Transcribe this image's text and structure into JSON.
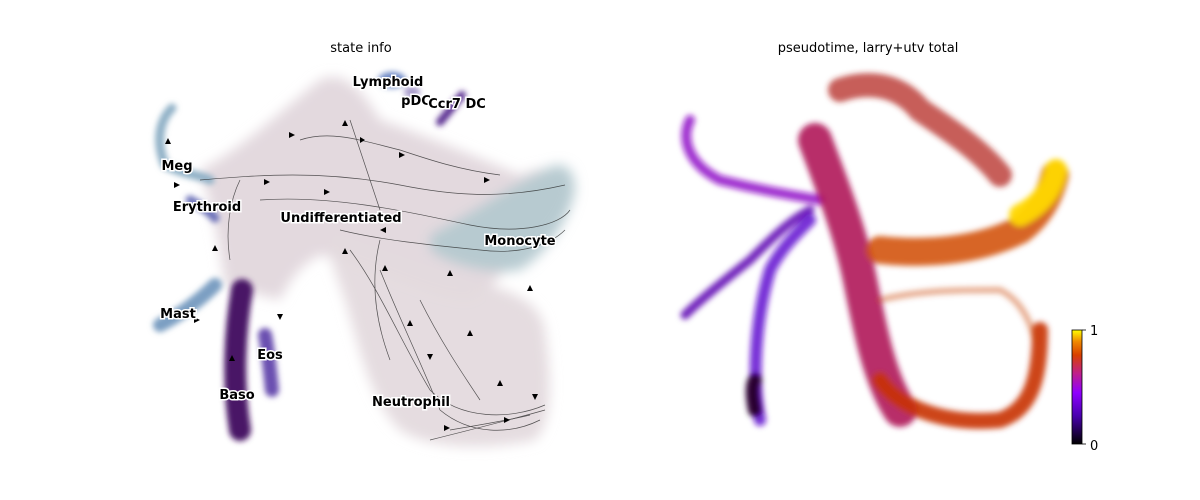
{
  "chart_data": [
    {
      "type": "scatter",
      "title": "state info",
      "categories": [
        "Lymphoid",
        "pDC",
        "Ccr7_DC",
        "Meg",
        "Erythroid",
        "Undifferentiated",
        "Monocyte",
        "Mast",
        "Eos",
        "Baso",
        "Neutrophil"
      ],
      "legend": "on data",
      "grid": false,
      "overlay": "velocity streamlines with arrowheads",
      "colors": {
        "Undifferentiated": "#e2d7dc",
        "Monocyte": "#b5c9d0",
        "Neutrophil": "#e2d7dc",
        "Meg": "#8fb0c6",
        "Erythroid": "#6a6fb8",
        "Mast": "#7b9fc2",
        "Baso": "#4a1466",
        "Eos": "#6b4fb0",
        "Lymphoid": "#6a86c4",
        "pDC": "#a89ccb",
        "Ccr7_DC": "#5a2d91"
      }
    },
    {
      "type": "scatter",
      "title": "pseudotime, larry+utv total",
      "colorbar": {
        "ticks": [
          "0",
          "1"
        ],
        "range": [
          0,
          1
        ],
        "colormap": "gnuplot"
      },
      "grid": false,
      "colors": {
        "low": "#2a0033",
        "mid_low": "#7a0fd8",
        "mid": "#b01a5a",
        "mid_high": "#c83000",
        "high": "#ffd800"
      }
    }
  ]
}
